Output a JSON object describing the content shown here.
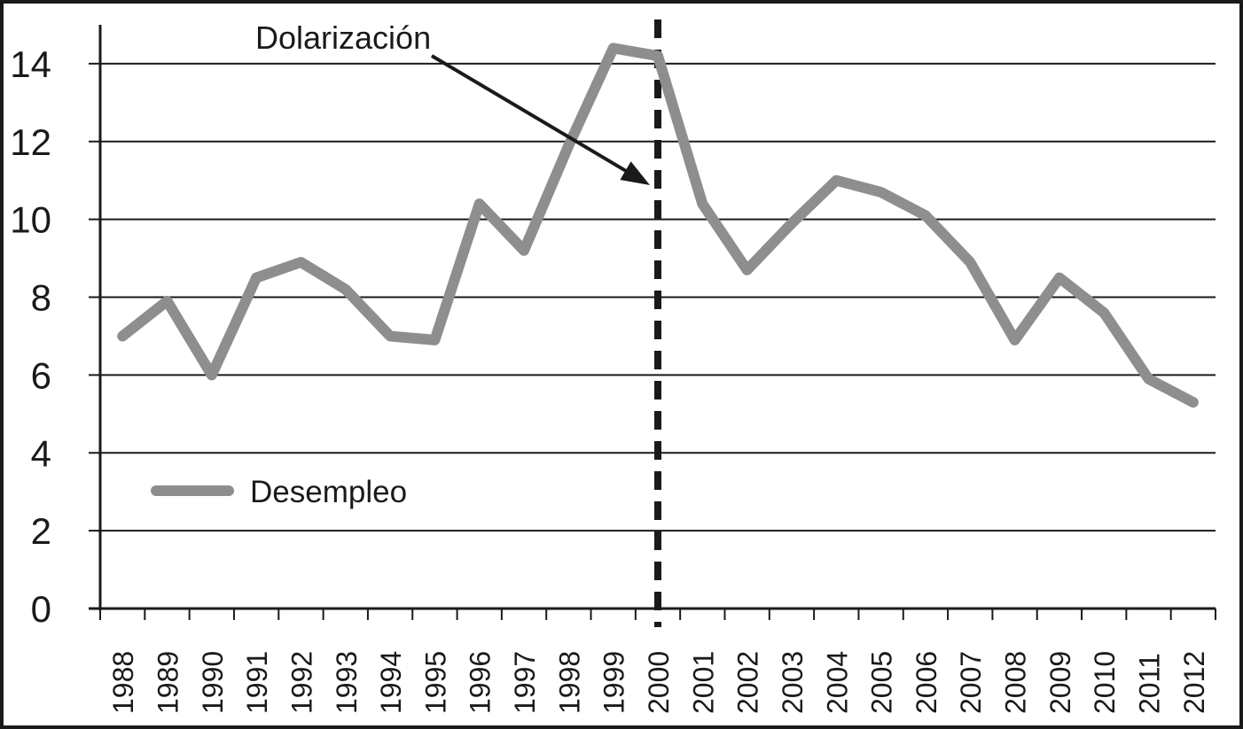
{
  "chart_data": {
    "type": "line",
    "title": "",
    "xlabel": "",
    "ylabel": "",
    "categories": [
      "1988",
      "1989",
      "1990",
      "1991",
      "1992",
      "1993",
      "1994",
      "1995",
      "1996",
      "1997",
      "1998",
      "1999",
      "2000",
      "2001",
      "2002",
      "2003",
      "2004",
      "2005",
      "2006",
      "2007",
      "2008",
      "2009",
      "2010",
      "2011",
      "2012"
    ],
    "series": [
      {
        "name": "Desempleo",
        "color": "#8e8e8e",
        "values": [
          7.0,
          7.9,
          6.0,
          8.5,
          8.9,
          8.2,
          7.0,
          6.9,
          10.4,
          9.2,
          11.9,
          14.4,
          14.2,
          10.4,
          8.7,
          9.9,
          11.0,
          10.7,
          10.1,
          8.9,
          6.9,
          8.5,
          7.6,
          5.9,
          5.3
        ]
      }
    ],
    "ylim": [
      0,
      15
    ],
    "yticks": [
      0,
      2,
      4,
      6,
      8,
      10,
      12,
      14
    ],
    "grid": true,
    "legend": {
      "label": "Desempleo",
      "position": "inside-left"
    },
    "annotation": {
      "text": "Dolarización",
      "target_category": "2000",
      "marker": "dashed-vertical-line",
      "arrow": true
    }
  },
  "colors": {
    "background": "#ffffff",
    "ink": "#1a1a1a",
    "series_gray": "#8e8e8e"
  }
}
